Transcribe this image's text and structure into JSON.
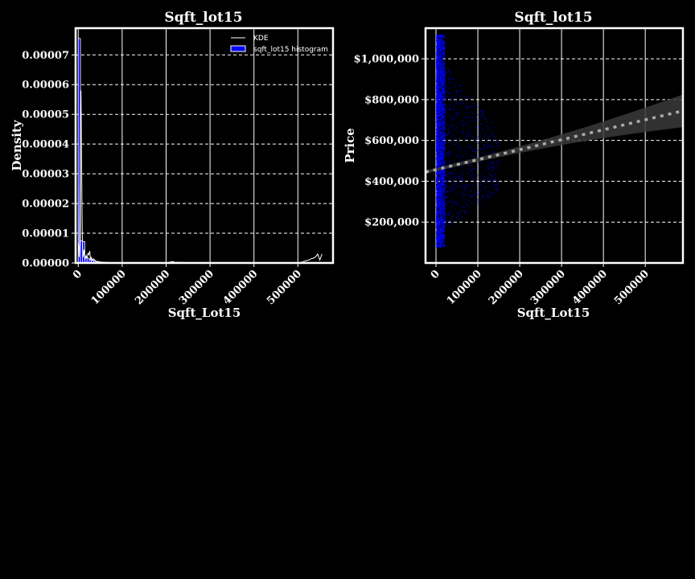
{
  "colors": {
    "background": "#000000",
    "foreground": "#ffffff",
    "histogram": "#0000ff",
    "scatter": "#0000ff",
    "kde": "#ffffff",
    "regression": "#aaaaaa",
    "ci_band": "#3a3a3a"
  },
  "chart_data": [
    {
      "type": "bar",
      "title": "Sqft_lot15",
      "xlabel": "Sqft_Lot15",
      "ylabel": "Density",
      "xlim": [
        -6000,
        580000
      ],
      "ylim": [
        0,
        7.9e-05
      ],
      "grid": true,
      "legend_position": "top-right",
      "x_ticks": [
        {
          "value": 0,
          "label": "0"
        },
        {
          "value": 100000,
          "label": "100000"
        },
        {
          "value": 200000,
          "label": "200000"
        },
        {
          "value": 300000,
          "label": "300000"
        },
        {
          "value": 400000,
          "label": "400000"
        },
        {
          "value": 500000,
          "label": "500000"
        }
      ],
      "y_ticks": [
        {
          "value": 0,
          "label": "0.00000"
        },
        {
          "value": 1e-05,
          "label": "0.00001"
        },
        {
          "value": 2e-05,
          "label": "0.00002"
        },
        {
          "value": 3e-05,
          "label": "0.00003"
        },
        {
          "value": 4e-05,
          "label": "0.00004"
        },
        {
          "value": 5e-05,
          "label": "0.00005"
        },
        {
          "value": 6e-05,
          "label": "0.00006"
        },
        {
          "value": 7e-05,
          "label": "0.00007"
        }
      ],
      "legend": [
        {
          "label": "KDE",
          "kind": "line"
        },
        {
          "label": "sqft_lot15 histogram",
          "kind": "patch"
        }
      ],
      "histogram": {
        "bin_edges": [
          0,
          5000,
          10000,
          15000,
          20000,
          25000,
          30000,
          35000,
          40000,
          45000,
          50000,
          55000,
          60000,
          65000,
          70000,
          75000,
          80000,
          85000,
          90000
        ],
        "density": [
          7.55e-05,
          7.5e-06,
          7.2e-06,
          1.8e-06,
          1.6e-06,
          1.2e-06,
          9e-07,
          7e-07,
          5e-07,
          4e-07,
          3e-07,
          2e-07,
          2e-07,
          1e-07,
          1e-07,
          1e-07,
          5e-08,
          5e-08
        ]
      },
      "kde": {
        "x": [
          0,
          1000,
          2000,
          3000,
          4000,
          5000,
          6000,
          7000,
          8000,
          9000,
          10000,
          11000,
          12000,
          13000,
          14000,
          15000,
          16000,
          18000,
          20000,
          22000,
          24000,
          26000,
          28000,
          30000,
          32000,
          35000,
          40000,
          45000,
          50000,
          60000,
          80000,
          100000,
          150000,
          200000,
          210000,
          215000,
          220000,
          300000,
          400000,
          500000,
          510000,
          515000,
          520000,
          525000,
          530000,
          535000,
          540000,
          545000,
          550000,
          555000
        ],
        "y": [
          6.8e-06,
          5.5e-06,
          2e-06,
          6e-06,
          2.8e-05,
          5.2e-05,
          5.8e-05,
          4.7e-05,
          2.8e-05,
          1.2e-05,
          5e-06,
          2e-06,
          3e-06,
          4.5e-06,
          3e-06,
          1e-06,
          1.5e-06,
          2.5e-06,
          1.5e-06,
          3.2e-06,
          2.8e-06,
          4e-06,
          1.2e-06,
          1.8e-06,
          8e-07,
          1.4e-06,
          6e-07,
          4e-07,
          3e-07,
          2e-07,
          8e-08,
          4e-08,
          2e-08,
          2e-08,
          3e-07,
          5e-07,
          2e-07,
          0.0,
          0.0,
          0.0,
          3e-07,
          6e-07,
          8e-07,
          1e-06,
          1.4e-06,
          1.6e-06,
          2e-06,
          3e-06,
          1e-06,
          3e-06
        ]
      }
    },
    {
      "type": "scatter",
      "title": "Sqft_lot15",
      "xlabel": "Sqft_Lot15",
      "ylabel": "Price",
      "xlim": [
        -25000,
        590000
      ],
      "ylim": [
        0,
        1150000
      ],
      "grid": true,
      "x_ticks": [
        {
          "value": 0,
          "label": "0"
        },
        {
          "value": 100000,
          "label": "100000"
        },
        {
          "value": 200000,
          "label": "200000"
        },
        {
          "value": 300000,
          "label": "300000"
        },
        {
          "value": 400000,
          "label": "400000"
        },
        {
          "value": 500000,
          "label": "500000"
        }
      ],
      "y_ticks": [
        {
          "value": 200000,
          "label": "$200,000"
        },
        {
          "value": 400000,
          "label": "$400,000"
        },
        {
          "value": 600000,
          "label": "$600,000"
        },
        {
          "value": 800000,
          "label": "$800,000"
        },
        {
          "value": 1000000,
          "label": "$1,000,000"
        }
      ],
      "points": {
        "x_range": [
          0,
          150000
        ],
        "y_range": [
          80000,
          1120000
        ],
        "dense_x_range": [
          0,
          20000
        ]
      },
      "regression": {
        "x": [
          -25000,
          590000
        ],
        "y": [
          445000,
          745000
        ],
        "ci_lower_end": 670000,
        "ci_upper_end": 830000,
        "ci_center_x": 5000,
        "ci_center_halfwidth": 8000
      }
    }
  ]
}
